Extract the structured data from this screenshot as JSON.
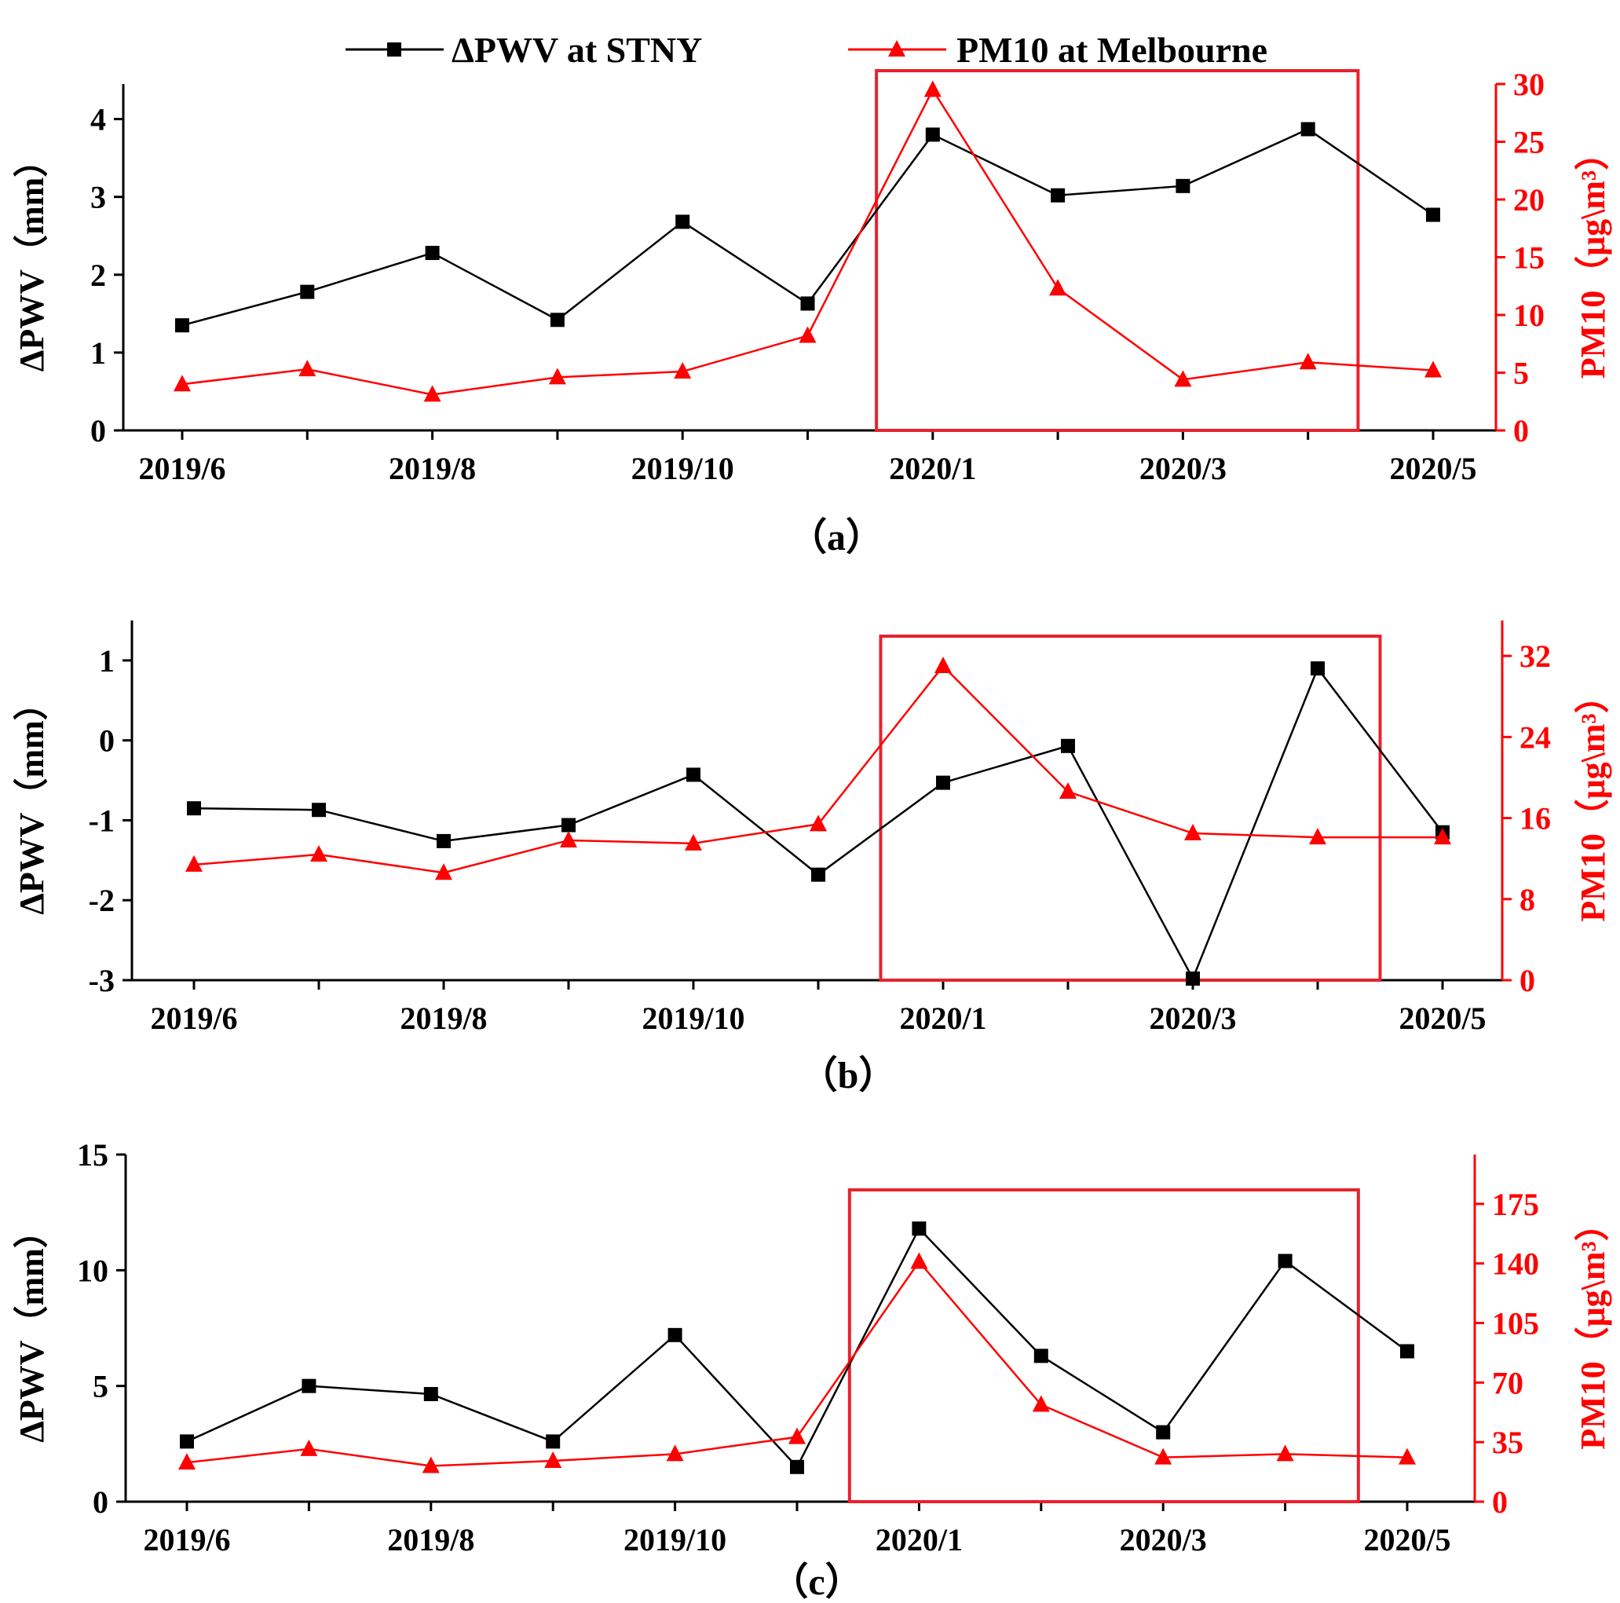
{
  "legend": [
    {
      "label": "ΔPWV at STNY",
      "color": "#000000",
      "marker": "square"
    },
    {
      "label": "PM10 at Melbourne",
      "color": "#ff0000",
      "marker": "triangle"
    }
  ],
  "chart_data": [
    {
      "type": "line",
      "panel_label": "（a）",
      "categories": [
        "2019/6",
        "2019/7",
        "2019/8",
        "2019/9",
        "2019/10",
        "2019/11",
        "2020/1",
        "2020/2",
        "2020/3",
        "2020/4",
        "2020/5"
      ],
      "x_tick_labels": [
        "2019/6",
        "",
        "2019/8",
        "",
        "2019/10",
        "",
        "2020/1",
        "",
        "2020/3",
        "",
        "2020/5"
      ],
      "series": [
        {
          "name": "ΔPWV at STNY",
          "axis": "left",
          "color": "#000000",
          "marker": "square",
          "values": [
            1.35,
            1.78,
            2.28,
            1.42,
            2.68,
            1.63,
            3.8,
            3.02,
            3.14,
            3.87,
            2.77
          ]
        },
        {
          "name": "PM10 at Melbourne",
          "axis": "right",
          "color": "#ff0000",
          "marker": "triangle",
          "values": [
            4.0,
            5.3,
            3.1,
            4.6,
            5.1,
            8.2,
            29.5,
            12.3,
            4.4,
            5.9,
            5.2
          ]
        }
      ],
      "ylabel": "ΔPWV（mm）",
      "ylabel_right": "PM10（μg\\m³）",
      "ylim": [
        0,
        4.45
      ],
      "yticks": [
        0,
        1,
        2,
        3,
        4
      ],
      "ylim_right": [
        0,
        30
      ],
      "yticks_right": [
        0,
        5,
        10,
        15,
        20,
        25,
        30
      ],
      "highlight_box": {
        "from_index": 5.55,
        "to_index": 9.4
      }
    },
    {
      "type": "line",
      "panel_label": "（b）",
      "categories": [
        "2019/6",
        "2019/7",
        "2019/8",
        "2019/9",
        "2019/10",
        "2019/11",
        "2020/1",
        "2020/2",
        "2020/3",
        "2020/4",
        "2020/5"
      ],
      "x_tick_labels": [
        "2019/6",
        "",
        "2019/8",
        "",
        "2019/10",
        "",
        "2020/1",
        "",
        "2020/3",
        "",
        "2020/5"
      ],
      "series": [
        {
          "name": "ΔPWV at STNY",
          "axis": "left",
          "color": "#000000",
          "marker": "square",
          "values": [
            -0.85,
            -0.87,
            -1.26,
            -1.06,
            -0.43,
            -1.68,
            -0.53,
            -0.07,
            -2.98,
            0.9,
            -1.15
          ]
        },
        {
          "name": "PM10 at Melbourne",
          "axis": "right",
          "color": "#ff0000",
          "marker": "triangle",
          "values": [
            11.4,
            12.4,
            10.6,
            13.8,
            13.5,
            15.4,
            31.0,
            18.6,
            14.5,
            14.1,
            14.1
          ]
        }
      ],
      "ylabel": "ΔPWV（mm）",
      "ylabel_right": "PM10（μg\\m³）",
      "ylim": [
        -3,
        1.5
      ],
      "yticks": [
        -3,
        -2,
        -1,
        0,
        1
      ],
      "ylim_right": [
        0,
        35.5
      ],
      "yticks_right": [
        0,
        8,
        16,
        24,
        32
      ],
      "highlight_box": {
        "from_index": 5.5,
        "to_index": 9.5
      }
    },
    {
      "type": "line",
      "panel_label": "（c）",
      "categories": [
        "2019/6",
        "2019/7",
        "2019/8",
        "2019/9",
        "2019/10",
        "2019/11",
        "2020/1",
        "2020/2",
        "2020/3",
        "2020/4",
        "2020/5"
      ],
      "x_tick_labels": [
        "2019/6",
        "",
        "2019/8",
        "",
        "2019/10",
        "",
        "2020/1",
        "",
        "2020/3",
        "",
        "2020/5"
      ],
      "series": [
        {
          "name": "ΔPWV at STNY",
          "axis": "left",
          "color": "#000000",
          "marker": "square",
          "values": [
            2.6,
            5.0,
            4.65,
            2.6,
            7.2,
            1.5,
            11.8,
            6.3,
            3.0,
            10.4,
            6.5
          ]
        },
        {
          "name": "PM10 at Melbourne",
          "axis": "right",
          "color": "#ff0000",
          "marker": "triangle",
          "values": [
            23,
            31,
            21,
            24,
            28,
            38,
            141,
            57,
            26,
            28,
            26
          ]
        }
      ],
      "ylabel": "ΔPWV（mm）",
      "ylabel_right": "PM10（μg\\m³）",
      "ylim": [
        0,
        15
      ],
      "yticks": [
        0,
        5,
        10,
        15
      ],
      "ylim_right": [
        0,
        204
      ],
      "yticks_right": [
        0,
        35,
        70,
        105,
        140,
        175
      ],
      "highlight_box": {
        "from_index": 5.43,
        "to_index": 9.6
      }
    }
  ]
}
